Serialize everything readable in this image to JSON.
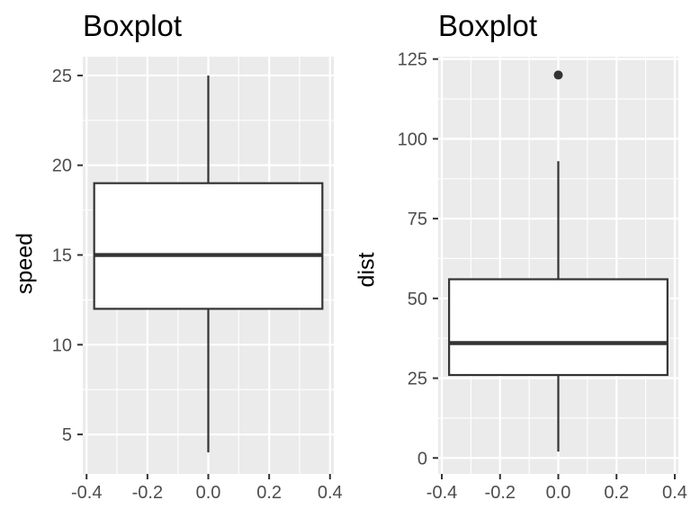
{
  "figure": {
    "background": "#FFFFFF"
  },
  "style": {
    "panel_bg": "#EBEBEB",
    "grid_color": "#FFFFFF",
    "box_stroke": "#333333",
    "box_fill": "#FFFFFF",
    "tick_mark_color": "#333333",
    "tick_label_color": "#4D4D4D",
    "title_color": "#000000",
    "axis_label_color": "#000000"
  },
  "chart_data": [
    {
      "type": "boxplot",
      "title": "Boxplot",
      "xlabel": "",
      "ylabel": "speed",
      "stats": {
        "whisker_low": 4,
        "q1": 12,
        "median": 15,
        "q3": 19,
        "whisker_high": 25
      },
      "outliers": [],
      "box_center_x": 0,
      "box_width": 0.75,
      "x_ticks": [
        -0.4,
        -0.2,
        0.0,
        0.2,
        0.4
      ],
      "x_tick_labels": [
        "-0.4",
        "-0.2",
        "0.0",
        "0.2",
        "0.4"
      ],
      "x_minor_ticks": [
        -0.3,
        -0.1,
        0.1,
        0.3
      ],
      "y_ticks": [
        5,
        10,
        15,
        20,
        25
      ],
      "y_tick_labels": [
        "5",
        "10",
        "15",
        "20",
        "25"
      ],
      "y_minor_ticks": [
        7.5,
        12.5,
        17.5,
        22.5
      ],
      "xlim": [
        -0.4125,
        0.4125
      ],
      "ylim": [
        2.8,
        26.05
      ],
      "grid": true,
      "legend": "none"
    },
    {
      "type": "boxplot",
      "title": "Boxplot",
      "xlabel": "",
      "ylabel": "dist",
      "stats": {
        "whisker_low": 2,
        "q1": 26,
        "median": 36,
        "q3": 56,
        "whisker_high": 93
      },
      "outliers": [
        120
      ],
      "box_center_x": 0,
      "box_width": 0.75,
      "x_ticks": [
        -0.4,
        -0.2,
        0.0,
        0.2,
        0.4
      ],
      "x_tick_labels": [
        "-0.4",
        "-0.2",
        "0.0",
        "0.2",
        "0.4"
      ],
      "x_minor_ticks": [
        -0.3,
        -0.1,
        0.1,
        0.3
      ],
      "y_ticks": [
        0,
        25,
        50,
        75,
        100,
        125
      ],
      "y_tick_labels": [
        "0",
        "25",
        "50",
        "75",
        "100",
        "125"
      ],
      "y_minor_ticks": [
        12.5,
        37.5,
        62.5,
        87.5,
        112.5
      ],
      "xlim": [
        -0.4125,
        0.4125
      ],
      "ylim": [
        -5.0,
        125.75
      ],
      "grid": true,
      "legend": "none"
    }
  ]
}
